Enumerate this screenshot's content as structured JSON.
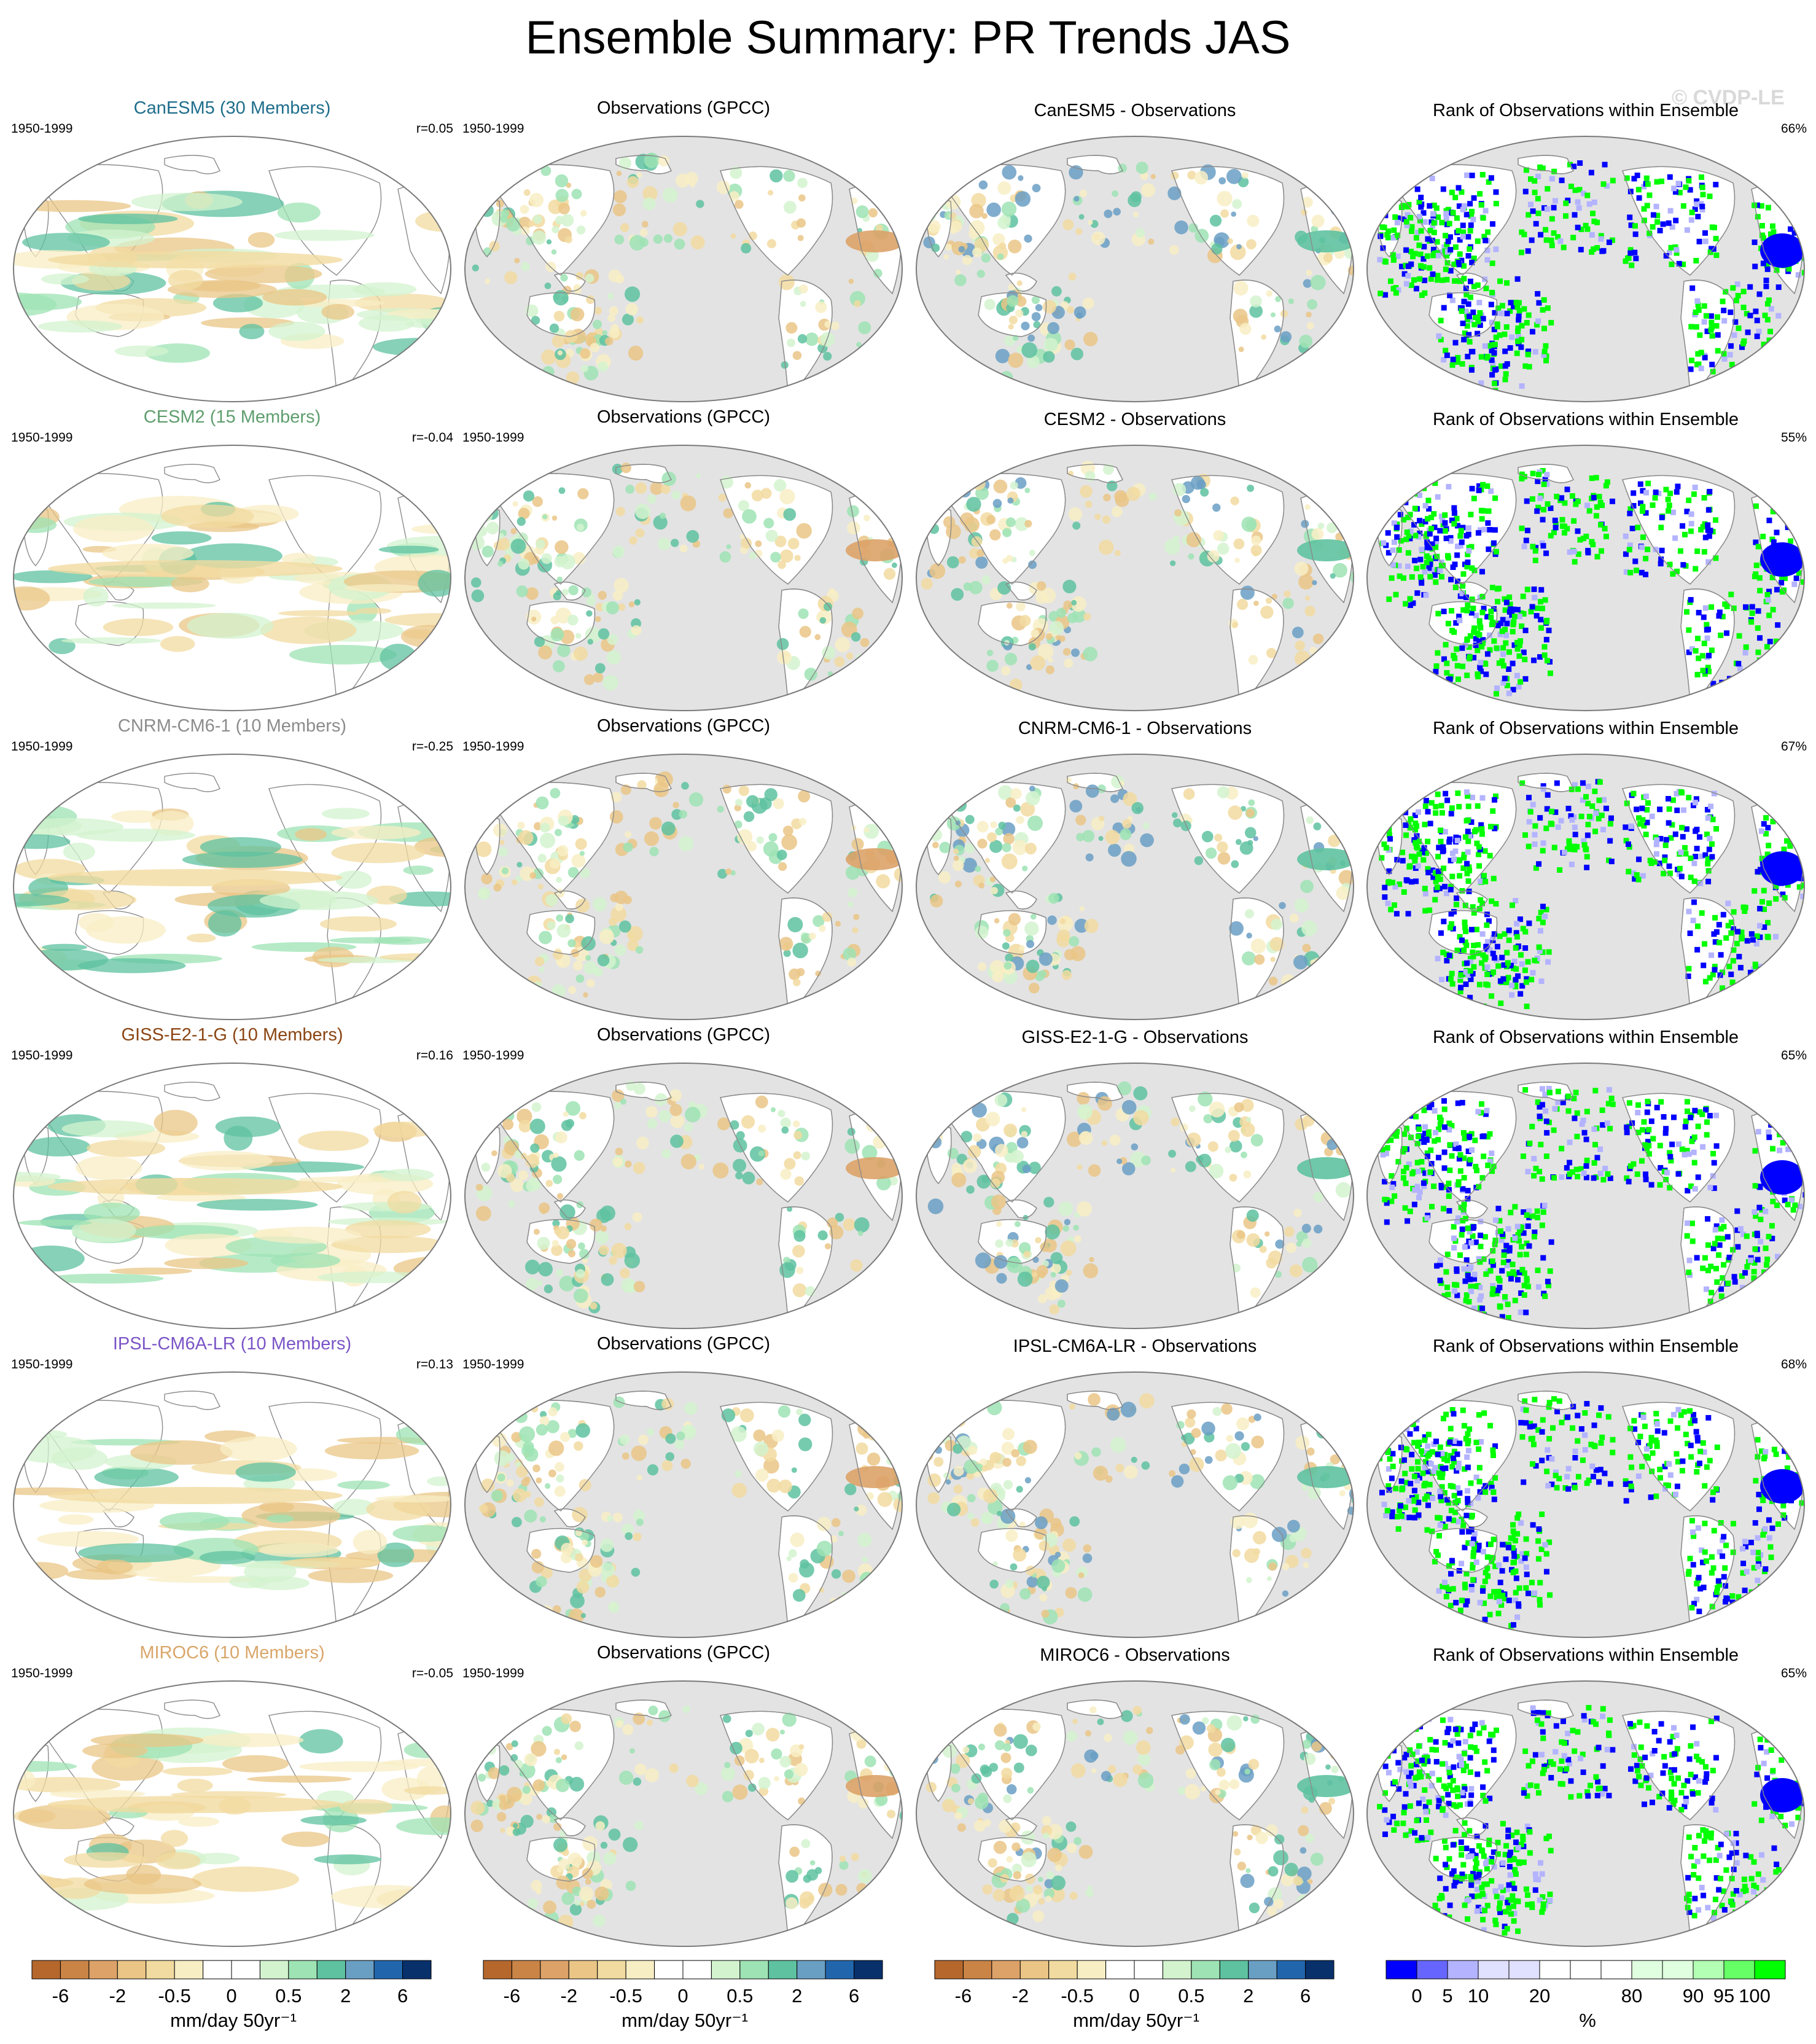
{
  "figure": {
    "title": "Ensemble Summary: PR Trends JAS",
    "watermark": "© CVDP-LE"
  },
  "rows": [
    {
      "model": "CanESM5",
      "model_title": "CanESM5 (30 Members)",
      "model_color": "#1f6e8c",
      "period": "1950-1999",
      "r": "r=0.05",
      "obs_title": "Observations (GPCC)",
      "obs_period": "1950-1999",
      "diff_title": "CanESM5 - Observations",
      "rank_title": "Rank of Observations within Ensemble",
      "rank_pct": "66%"
    },
    {
      "model": "CESM2",
      "model_title": "CESM2 (15 Members)",
      "model_color": "#5f9e6e",
      "period": "1950-1999",
      "r": "r=-0.04",
      "obs_title": "Observations (GPCC)",
      "obs_period": "1950-1999",
      "diff_title": "CESM2 - Observations",
      "rank_title": "Rank of Observations within Ensemble",
      "rank_pct": "55%"
    },
    {
      "model": "CNRM-CM6-1",
      "model_title": "CNRM-CM6-1 (10 Members)",
      "model_color": "#8c8c8c",
      "period": "1950-1999",
      "r": "r=-0.25",
      "obs_title": "Observations (GPCC)",
      "obs_period": "1950-1999",
      "diff_title": "CNRM-CM6-1 - Observations",
      "rank_title": "Rank of Observations within Ensemble",
      "rank_pct": "67%"
    },
    {
      "model": "GISS-E2-1-G",
      "model_title": "GISS-E2-1-G (10 Members)",
      "model_color": "#8b4513",
      "period": "1950-1999",
      "r": "r=0.16",
      "obs_title": "Observations (GPCC)",
      "obs_period": "1950-1999",
      "diff_title": "GISS-E2-1-G - Observations",
      "rank_title": "Rank of Observations within Ensemble",
      "rank_pct": "65%"
    },
    {
      "model": "IPSL-CM6A-LR",
      "model_title": "IPSL-CM6A-LR (10 Members)",
      "model_color": "#7b55c7",
      "period": "1950-1999",
      "r": "r=0.13",
      "obs_title": "Observations (GPCC)",
      "obs_period": "1950-1999",
      "diff_title": "IPSL-CM6A-LR - Observations",
      "rank_title": "Rank of Observations within Ensemble",
      "rank_pct": "68%"
    },
    {
      "model": "MIROC6",
      "model_title": "MIROC6 (10 Members)",
      "model_color": "#d9a66a",
      "period": "1950-1999",
      "r": "r=-0.05",
      "obs_title": "Observations (GPCC)",
      "obs_period": "1950-1999",
      "diff_title": "MIROC6 - Observations",
      "rank_title": "Rank of Observations within Ensemble",
      "rank_pct": "65%"
    }
  ],
  "colorbars": {
    "trend": {
      "label": "mm/day 50yr⁻¹",
      "ticks": [
        "-6",
        "-2",
        "-0.5",
        "0",
        "0.5",
        "2",
        "6"
      ],
      "colors": [
        "#b5672c",
        "#c98446",
        "#dca268",
        "#eac586",
        "#f2dba0",
        "#f8eec4",
        "#ffffff",
        "#ffffff",
        "#d3f3cf",
        "#9ee3b4",
        "#5ec2a0",
        "#6a9fc4",
        "#2166ac",
        "#08306b"
      ]
    },
    "rank": {
      "label": "%",
      "ticks": [
        "0",
        "5",
        "10",
        "20",
        "80",
        "90",
        "95",
        "100"
      ],
      "colors": [
        "#0000ff",
        "#6666ff",
        "#b3b3ff",
        "#e0e0ff",
        "#e0e0ff",
        "#ffffff",
        "#ffffff",
        "#ffffff",
        "#e0ffe0",
        "#e0ffe0",
        "#b3ffb3",
        "#66ff66",
        "#00ff00"
      ]
    }
  },
  "map_style": {
    "model_background": "#ffffff",
    "obs_background": "#e3e3e3",
    "coast_color": "#8c8c8c"
  }
}
